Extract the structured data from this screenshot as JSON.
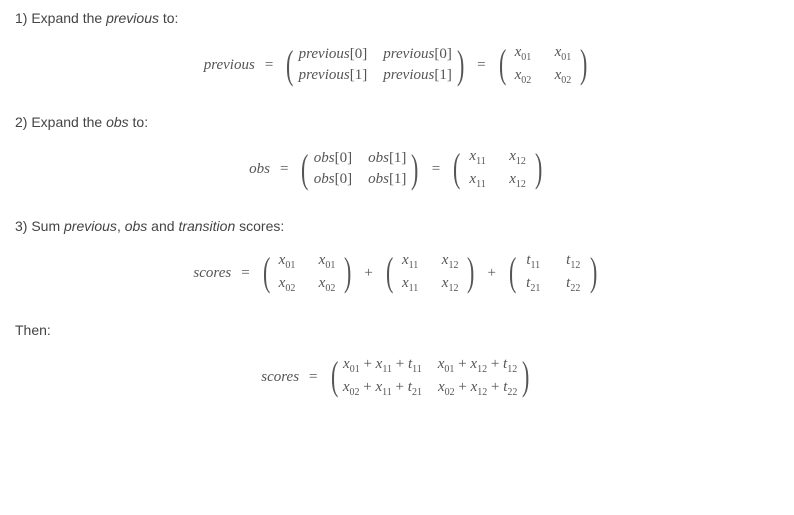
{
  "steps": [
    {
      "id": 1,
      "label_pre": "1) Expand the ",
      "label_ital": "previous",
      "label_post": " to:",
      "eq": "eq1"
    },
    {
      "id": 2,
      "label_pre": "2) Expand the ",
      "label_ital": "obs",
      "label_post": " to:",
      "eq": "eq2"
    },
    {
      "id": 3,
      "label_pre": "3) Sum ",
      "label_ital": "previous",
      "label_mid1": ", ",
      "label_ital2": "obs",
      "label_mid2": " and ",
      "label_ital3": "transition",
      "label_post": " scores:",
      "eq": "eq3"
    }
  ],
  "then_label": "Then:",
  "equations": {
    "eq1": {
      "lhs": "previous",
      "m1": [
        [
          "previous[0]",
          "previous[0]"
        ],
        [
          "previous[1]",
          "previous[1]"
        ]
      ],
      "m2": [
        [
          "x_{01}",
          "x_{01}"
        ],
        [
          "x_{02}",
          "x_{02}"
        ]
      ]
    },
    "eq2": {
      "lhs": "obs",
      "m1": [
        [
          "obs[0]",
          "obs[1]"
        ],
        [
          "obs[0]",
          "obs[1]"
        ]
      ],
      "m2": [
        [
          "x_{11}",
          "x_{12}"
        ],
        [
          "x_{11}",
          "x_{12}"
        ]
      ]
    },
    "eq3": {
      "lhs": "scores",
      "m1": [
        [
          "x_{01}",
          "x_{01}"
        ],
        [
          "x_{02}",
          "x_{02}"
        ]
      ],
      "m2": [
        [
          "x_{11}",
          "x_{12}"
        ],
        [
          "x_{11}",
          "x_{12}"
        ]
      ],
      "m3": [
        [
          "t_{11}",
          "t_{12}"
        ],
        [
          "t_{21}",
          "t_{22}"
        ]
      ]
    },
    "eq4": {
      "lhs": "scores",
      "m1": [
        [
          "x_{01} + x_{11} + t_{11}",
          "x_{01} + x_{12} + t_{12}"
        ],
        [
          "x_{02} + x_{11} + t_{21}",
          "x_{02} + x_{12} + t_{22}"
        ]
      ]
    }
  },
  "colors": {
    "text": "#444444",
    "math": "#555555",
    "background": "#ffffff"
  },
  "typography": {
    "body_fontsize": 14,
    "math_fontsize": 15,
    "sub_fontsize": 10,
    "math_font": "Times New Roman"
  }
}
